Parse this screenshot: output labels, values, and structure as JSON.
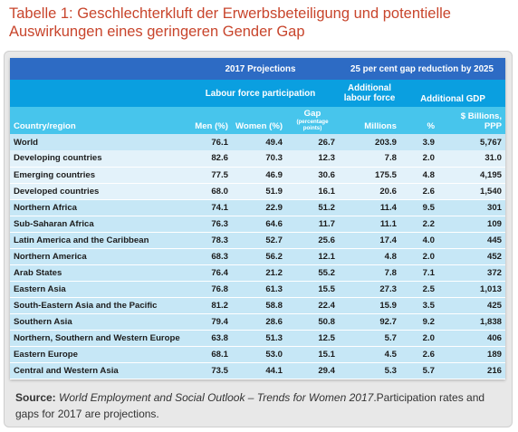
{
  "title": "Tabelle 1: Geschlechterkluft der Erwerbsbeteiligung und potentielle Auswirkungen eines geringeren Gender Gap",
  "headers": {
    "projections": "2017 Projections",
    "gap_reduction": "25 per cent gap reduction by 2025",
    "labour_force_participation": "Labour force participation",
    "additional_labour_force": "Additional labour force",
    "additional_gdp": "Additional GDP",
    "country_region": "Country/region",
    "men": "Men (%)",
    "women": "Women (%)",
    "gap": "Gap",
    "gap_note": "(percentage points)",
    "millions": "Millions",
    "percent": "%",
    "billions": "$ Billions, PPP"
  },
  "rows": [
    {
      "name": "World",
      "men": "76.1",
      "women": "49.4",
      "gap": "26.7",
      "millions": "203.9",
      "pct": "3.9",
      "billions": "5,767"
    },
    {
      "name": "Developing countries",
      "men": "82.6",
      "women": "70.3",
      "gap": "12.3",
      "millions": "7.8",
      "pct": "2.0",
      "billions": "31.0"
    },
    {
      "name": "Emerging countries",
      "men": "77.5",
      "women": "46.9",
      "gap": "30.6",
      "millions": "175.5",
      "pct": "4.8",
      "billions": "4,195"
    },
    {
      "name": "Developed countries",
      "men": "68.0",
      "women": "51.9",
      "gap": "16.1",
      "millions": "20.6",
      "pct": "2.6",
      "billions": "1,540"
    },
    {
      "name": "Northern Africa",
      "men": "74.1",
      "women": "22.9",
      "gap": "51.2",
      "millions": "11.4",
      "pct": "9.5",
      "billions": "301"
    },
    {
      "name": "Sub-Saharan Africa",
      "men": "76.3",
      "women": "64.6",
      "gap": "11.7",
      "millions": "11.1",
      "pct": "2.2",
      "billions": "109"
    },
    {
      "name": "Latin America and the Caribbean",
      "men": "78.3",
      "women": "52.7",
      "gap": "25.6",
      "millions": "17.4",
      "pct": "4.0",
      "billions": "445"
    },
    {
      "name": "Northern America",
      "men": "68.3",
      "women": "56.2",
      "gap": "12.1",
      "millions": "4.8",
      "pct": "2.0",
      "billions": "452"
    },
    {
      "name": "Arab States",
      "men": "76.4",
      "women": "21.2",
      "gap": "55.2",
      "millions": "7.8",
      "pct": "7.1",
      "billions": "372"
    },
    {
      "name": "Eastern Asia",
      "men": "76.8",
      "women": "61.3",
      "gap": "15.5",
      "millions": "27.3",
      "pct": "2.5",
      "billions": "1,013"
    },
    {
      "name": "South-Eastern Asia and the Pacific",
      "men": "81.2",
      "women": "58.8",
      "gap": "22.4",
      "millions": "15.9",
      "pct": "3.5",
      "billions": "425"
    },
    {
      "name": "Southern Asia",
      "men": "79.4",
      "women": "28.6",
      "gap": "50.8",
      "millions": "92.7",
      "pct": "9.2",
      "billions": "1,838"
    },
    {
      "name": "Northern, Southern and Western Europe",
      "men": "63.8",
      "women": "51.3",
      "gap": "12.5",
      "millions": "5.7",
      "pct": "2.0",
      "billions": "406"
    },
    {
      "name": "Eastern Europe",
      "men": "68.1",
      "women": "53.0",
      "gap": "15.1",
      "millions": "4.5",
      "pct": "2.6",
      "billions": "189"
    },
    {
      "name": "Central and Western Asia",
      "men": "73.5",
      "women": "44.1",
      "gap": "29.4",
      "millions": "5.3",
      "pct": "5.7",
      "billions": "216"
    }
  ],
  "source": {
    "label": "Source:",
    "italic": "World Employment and Social Outlook – Trends for Women 2017",
    "rest": ".Participation rates and gaps for 2017 are projections."
  }
}
